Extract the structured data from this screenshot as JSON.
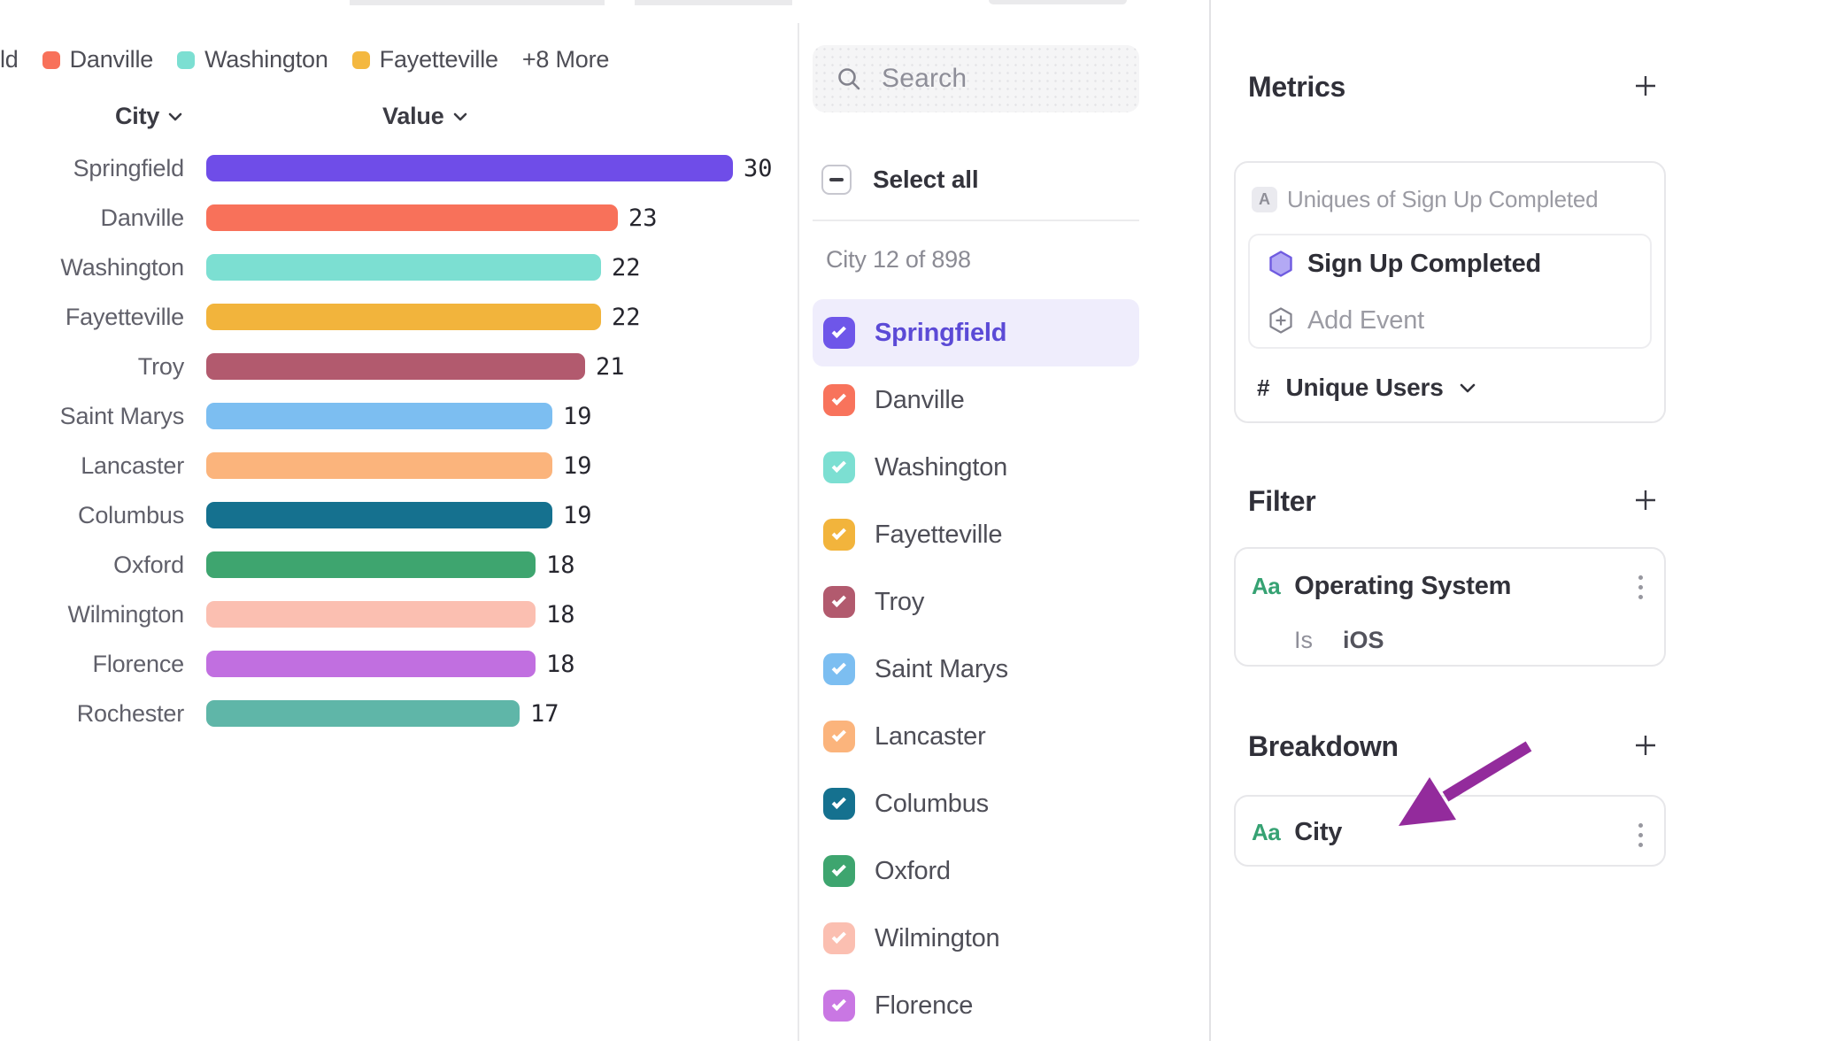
{
  "legend": {
    "items": [
      {
        "label": "ld",
        "swatch": null
      },
      {
        "label": "Danville",
        "swatch": "#F8715A"
      },
      {
        "label": "Washington",
        "swatch": "#7CDFD2"
      },
      {
        "label": "Fayetteville",
        "swatch": "#F4B840"
      }
    ],
    "more_label": "+8 More"
  },
  "chart": {
    "header_city": "City",
    "header_value": "Value"
  },
  "chart_data": {
    "type": "bar",
    "orientation": "horizontal",
    "title": "",
    "xlabel": "Value",
    "ylabel": "City",
    "xlim": [
      0,
      30
    ],
    "grid": false,
    "categories": [
      "Springfield",
      "Danville",
      "Washington",
      "Fayetteville",
      "Troy",
      "Saint Marys",
      "Lancaster",
      "Columbus",
      "Oxford",
      "Wilmington",
      "Florence",
      "Rochester"
    ],
    "values": [
      30,
      23,
      22,
      22,
      21,
      19,
      19,
      19,
      18,
      18,
      18,
      17
    ],
    "colors": [
      "#6F4DE8",
      "#F8715A",
      "#7CDFD2",
      "#F2B43C",
      "#B25A6E",
      "#7CBEF1",
      "#FBB47C",
      "#15718F",
      "#3EA56F",
      "#FBBFB1",
      "#C16FE0",
      "#5FB6A8"
    ]
  },
  "selector": {
    "search_placeholder": "Search",
    "select_all_label": "Select all",
    "count_label": "City 12 of 898",
    "items": [
      {
        "label": "Springfield",
        "color": "#6E56E9",
        "checked": true,
        "highlighted": true
      },
      {
        "label": "Danville",
        "color": "#F8735C",
        "checked": true,
        "highlighted": false
      },
      {
        "label": "Washington",
        "color": "#7CDFD2",
        "checked": true,
        "highlighted": false
      },
      {
        "label": "Fayetteville",
        "color": "#F2B43C",
        "checked": true,
        "highlighted": false
      },
      {
        "label": "Troy",
        "color": "#B25A6E",
        "checked": true,
        "highlighted": false
      },
      {
        "label": "Saint Marys",
        "color": "#7CBEF1",
        "checked": true,
        "highlighted": false
      },
      {
        "label": "Lancaster",
        "color": "#FBB47C",
        "checked": true,
        "highlighted": false
      },
      {
        "label": "Columbus",
        "color": "#15718F",
        "checked": true,
        "highlighted": false
      },
      {
        "label": "Oxford",
        "color": "#3EA56F",
        "checked": true,
        "highlighted": false
      },
      {
        "label": "Wilmington",
        "color": "#FBBFB1",
        "checked": true,
        "highlighted": false
      },
      {
        "label": "Florence",
        "color": "#C977E3",
        "checked": true,
        "highlighted": false
      }
    ]
  },
  "panels": {
    "metrics": {
      "title": "Metrics",
      "formula_badge": "A",
      "formula_label": "Uniques of Sign Up Completed",
      "event_name": "Sign Up Completed",
      "add_event_label": "Add Event",
      "aggregation_hash": "#",
      "aggregation_label": "Unique Users"
    },
    "filter": {
      "title": "Filter",
      "property_icon": "Aa",
      "property": "Operating System",
      "operator": "Is",
      "value": "iOS"
    },
    "breakdown": {
      "title": "Breakdown",
      "property_icon": "Aa",
      "property": "City"
    }
  },
  "annotation": {
    "arrow_color": "#932B9C"
  },
  "colors": {
    "selected_row_bg": "#EFEDFC",
    "selected_text": "#5B4AD6",
    "hexagon_fill": "#B3A9F4",
    "hexagon_stroke": "#6F5BE0"
  }
}
